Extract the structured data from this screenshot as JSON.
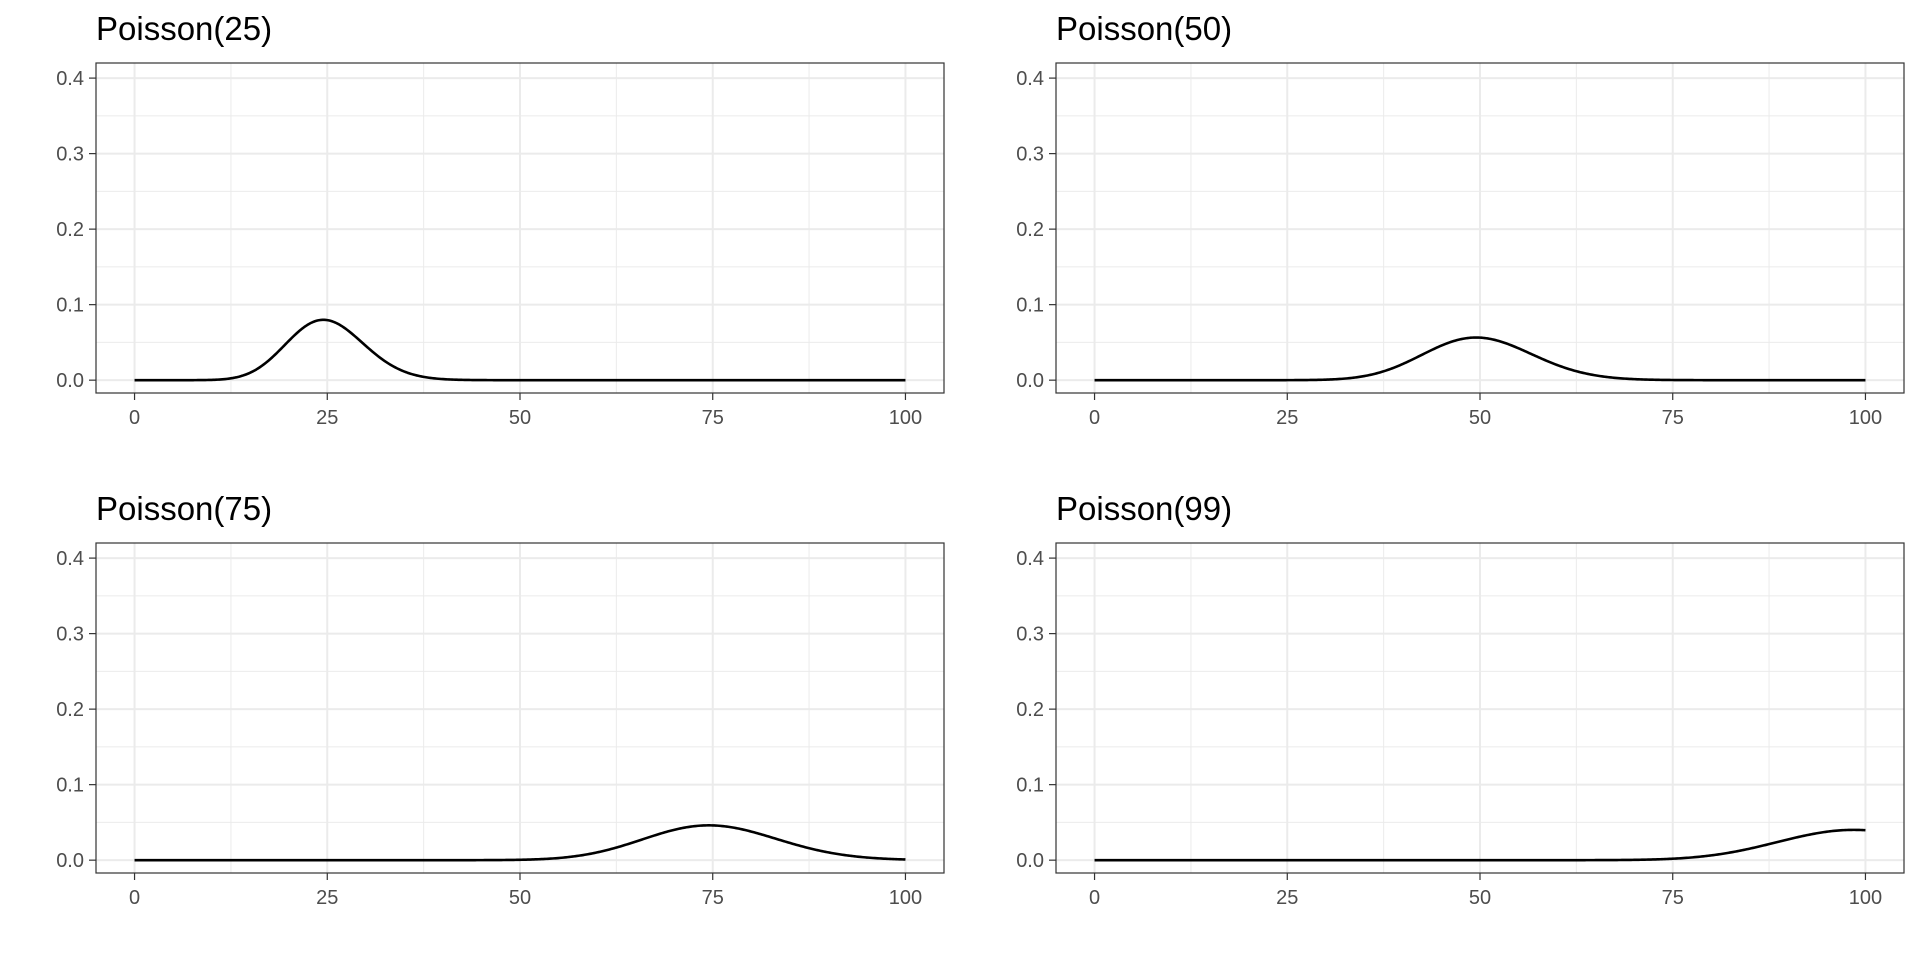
{
  "chart_data": [
    {
      "type": "line",
      "title": "Poisson(25)",
      "lambda": 25,
      "x_range": [
        0,
        100
      ],
      "xlim": [
        -5,
        105
      ],
      "ylim": [
        -0.017,
        0.42
      ],
      "x_ticks": [
        0,
        25,
        50,
        75,
        100
      ],
      "y_ticks": [
        0.0,
        0.1,
        0.2,
        0.3,
        0.4
      ],
      "x_tick_labels": [
        "0",
        "25",
        "50",
        "75",
        "100"
      ],
      "y_tick_labels": [
        "0.0",
        "0.1",
        "0.2",
        "0.3",
        "0.4"
      ],
      "peak": {
        "x": 25,
        "y": 0.0795
      },
      "line_color": "#000000",
      "grid": true
    },
    {
      "type": "line",
      "title": "Poisson(50)",
      "lambda": 50,
      "x_range": [
        0,
        100
      ],
      "xlim": [
        -5,
        105
      ],
      "ylim": [
        -0.017,
        0.42
      ],
      "x_ticks": [
        0,
        25,
        50,
        75,
        100
      ],
      "y_ticks": [
        0.0,
        0.1,
        0.2,
        0.3,
        0.4
      ],
      "x_tick_labels": [
        "0",
        "25",
        "50",
        "75",
        "100"
      ],
      "y_tick_labels": [
        "0.0",
        "0.1",
        "0.2",
        "0.3",
        "0.4"
      ],
      "peak": {
        "x": 50,
        "y": 0.0563
      },
      "line_color": "#000000",
      "grid": true
    },
    {
      "type": "line",
      "title": "Poisson(75)",
      "lambda": 75,
      "x_range": [
        0,
        100
      ],
      "xlim": [
        -5,
        105
      ],
      "ylim": [
        -0.017,
        0.42
      ],
      "x_ticks": [
        0,
        25,
        50,
        75,
        100
      ],
      "y_ticks": [
        0.0,
        0.1,
        0.2,
        0.3,
        0.4
      ],
      "x_tick_labels": [
        "0",
        "25",
        "50",
        "75",
        "100"
      ],
      "y_tick_labels": [
        "0.0",
        "0.1",
        "0.2",
        "0.3",
        "0.4"
      ],
      "peak": {
        "x": 75,
        "y": 0.046
      },
      "line_color": "#000000",
      "grid": true
    },
    {
      "type": "line",
      "title": "Poisson(99)",
      "lambda": 99,
      "x_range": [
        0,
        100
      ],
      "xlim": [
        -5,
        105
      ],
      "ylim": [
        -0.017,
        0.42
      ],
      "x_ticks": [
        0,
        25,
        50,
        75,
        100
      ],
      "y_ticks": [
        0.0,
        0.1,
        0.2,
        0.3,
        0.4
      ],
      "x_tick_labels": [
        "0",
        "25",
        "50",
        "75",
        "100"
      ],
      "y_tick_labels": [
        "0.0",
        "0.1",
        "0.2",
        "0.3",
        "0.4"
      ],
      "peak": {
        "x": 99,
        "y": 0.04
      },
      "line_color": "#000000",
      "grid": true
    }
  ]
}
